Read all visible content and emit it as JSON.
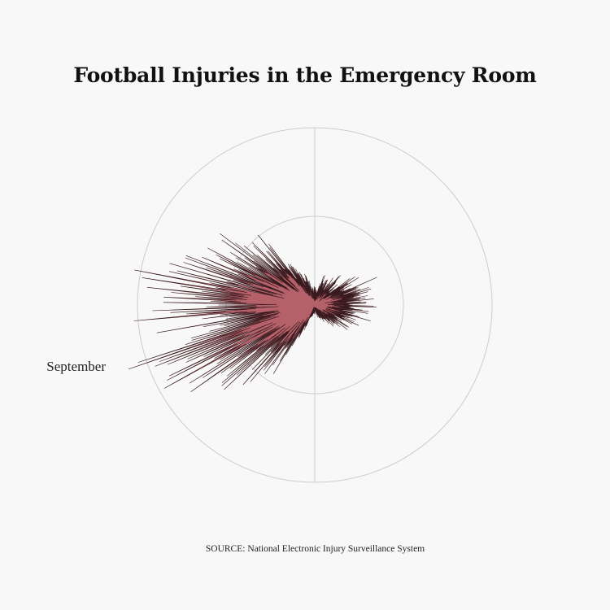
{
  "title": "Football Injuries in the Emergency Room",
  "source": "SOURCE: National Electronic Injury Surveillance System",
  "colors": {
    "background": "#f8f8f8",
    "fill": "#b5616a",
    "stroke": "#3a1a1e",
    "grid": "#cccccc"
  },
  "chart_data": {
    "type": "area",
    "coordinate_system": "polar",
    "annotations": [
      {
        "label": "September",
        "angle_deg": 252
      }
    ],
    "grid": true,
    "r_gridlines": [
      100,
      200
    ],
    "rlim": [
      0,
      200
    ],
    "theta_unit": "degrees clockwise from top",
    "series": [
      {
        "values_by_angle": [
          [
            0,
            18
          ],
          [
            10,
            20
          ],
          [
            20,
            34
          ],
          [
            30,
            28
          ],
          [
            40,
            40
          ],
          [
            50,
            32
          ],
          [
            55,
            62
          ],
          [
            60,
            45
          ],
          [
            65,
            70
          ],
          [
            70,
            58
          ],
          [
            75,
            64
          ],
          [
            80,
            55
          ],
          [
            85,
            66
          ],
          [
            90,
            60
          ],
          [
            95,
            63
          ],
          [
            100,
            56
          ],
          [
            105,
            65
          ],
          [
            110,
            48
          ],
          [
            115,
            52
          ],
          [
            120,
            40
          ],
          [
            125,
            45
          ],
          [
            130,
            38
          ],
          [
            135,
            32
          ],
          [
            140,
            30
          ],
          [
            145,
            24
          ],
          [
            150,
            20
          ],
          [
            160,
            14
          ],
          [
            170,
            12
          ],
          [
            180,
            10
          ],
          [
            190,
            10
          ],
          [
            200,
            14
          ],
          [
            205,
            40
          ],
          [
            210,
            78
          ],
          [
            215,
            92
          ],
          [
            220,
            100
          ],
          [
            225,
            118
          ],
          [
            230,
            130
          ],
          [
            235,
            155
          ],
          [
            240,
            175
          ],
          [
            245,
            190
          ],
          [
            248,
            178
          ],
          [
            250,
            200
          ],
          [
            252,
            188
          ],
          [
            255,
            196
          ],
          [
            258,
            160
          ],
          [
            260,
            194
          ],
          [
            262,
            168
          ],
          [
            265,
            200
          ],
          [
            268,
            172
          ],
          [
            270,
            194
          ],
          [
            273,
            180
          ],
          [
            275,
            188
          ],
          [
            278,
            160
          ],
          [
            280,
            196
          ],
          [
            283,
            170
          ],
          [
            285,
            178
          ],
          [
            288,
            155
          ],
          [
            290,
            168
          ],
          [
            293,
            150
          ],
          [
            295,
            160
          ],
          [
            298,
            140
          ],
          [
            300,
            145
          ],
          [
            303,
            120
          ],
          [
            305,
            140
          ],
          [
            308,
            112
          ],
          [
            310,
            120
          ],
          [
            313,
            92
          ],
          [
            315,
            100
          ],
          [
            320,
            84
          ],
          [
            322,
            95
          ],
          [
            325,
            60
          ],
          [
            330,
            50
          ],
          [
            335,
            38
          ],
          [
            340,
            35
          ],
          [
            345,
            28
          ],
          [
            350,
            22
          ],
          [
            355,
            20
          ]
        ]
      }
    ]
  }
}
